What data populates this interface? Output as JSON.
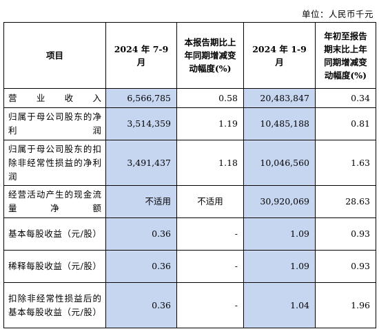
{
  "unit_label": "单位：人民币千元",
  "headers": {
    "item": "项目",
    "q3": "2024 年 7-9 月",
    "q3_change": "本报告期比上年同期增减变动幅度(%)",
    "ytd": "2024 年 1-9 月",
    "ytd_change": "年初至报告期末比上年同期增减变动幅度(%)"
  },
  "rows": [
    {
      "label": "营业收入",
      "q3": "6,566,785",
      "q3_change": "0.58",
      "ytd": "20,483,847",
      "ytd_change": "0.34"
    },
    {
      "label": "归属于母公司股东的净利润",
      "q3": "3,514,359",
      "q3_change": "1.19",
      "ytd": "10,485,188",
      "ytd_change": "0.81"
    },
    {
      "label": "归属于母公司股东的扣除非经常性损益的净利润",
      "q3": "3,491,437",
      "q3_change": "1.18",
      "ytd": "10,046,560",
      "ytd_change": "1.63"
    },
    {
      "label": "经营活动产生的现金流量净额",
      "q3": "不适用",
      "q3_change": "不适用",
      "ytd": "30,920,069",
      "ytd_change": "28.63"
    },
    {
      "label": "基本每股收益（元/股）",
      "q3": "0.36",
      "q3_change": "-",
      "ytd": "1.09",
      "ytd_change": "0.93"
    },
    {
      "label": "稀释每股收益（元/股）",
      "q3": "0.36",
      "q3_change": "-",
      "ytd": "1.09",
      "ytd_change": "0.93"
    },
    {
      "label": "扣除非经常性损益后的基本每股收益（元/股）",
      "q3": "0.36",
      "q3_change": "-",
      "ytd": "1.04",
      "ytd_change": "1.96"
    }
  ]
}
